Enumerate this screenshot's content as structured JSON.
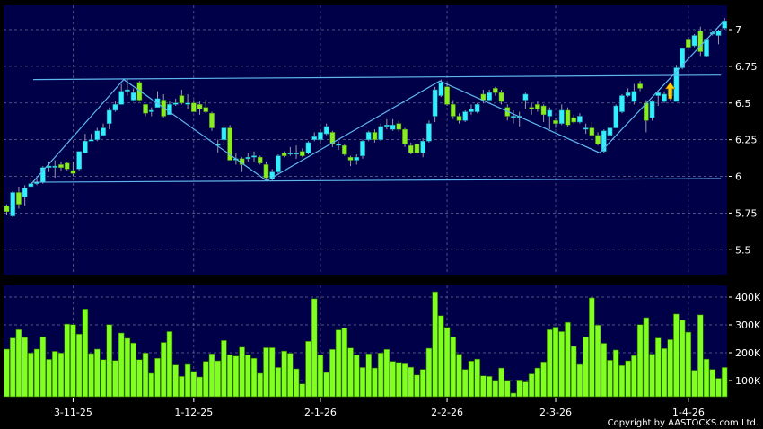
{
  "copyright": "Copyright by AASTOCKS.com Ltd.",
  "colors": {
    "background": "#000000",
    "panel": "#000048",
    "grid": "#6a6a9a",
    "up": "#33eeff",
    "down": "#88ee22",
    "volume": "#80ff20",
    "trendline": "#5fb6ee",
    "arrow": "#ffcc00"
  },
  "chart_data": [
    {
      "type": "candlestick",
      "title": "",
      "grid": true,
      "ylim": [
        5.35,
        7.16
      ],
      "y_ticks": [
        "7",
        "6.75",
        "6.5",
        "6.25",
        "6",
        "5.75",
        "5.5"
      ],
      "y_tick_values": [
        7,
        6.75,
        6.5,
        6.25,
        6,
        5.75,
        5.5
      ],
      "x_ticks": [
        {
          "label": "3-11-25",
          "bar_index": 11
        },
        {
          "label": "1-12-25",
          "bar_index": 31
        },
        {
          "label": "2-1-26",
          "bar_index": 52
        },
        {
          "label": "2-2-26",
          "bar_index": 73
        },
        {
          "label": "2-3-26",
          "bar_index": 91
        },
        {
          "label": "1-4-26",
          "bar_index": 113
        }
      ],
      "ohlc_fields": [
        "open",
        "high",
        "low",
        "close"
      ],
      "ohlc": [
        [
          5.8,
          5.81,
          5.74,
          5.76
        ],
        [
          5.73,
          5.9,
          5.72,
          5.89
        ],
        [
          5.89,
          5.93,
          5.78,
          5.81
        ],
        [
          5.86,
          5.94,
          5.8,
          5.92
        ],
        [
          5.93,
          5.99,
          5.93,
          5.95
        ],
        [
          5.95,
          5.98,
          5.94,
          5.96
        ],
        [
          5.96,
          6.07,
          5.95,
          6.06
        ],
        [
          6.06,
          6.1,
          6.03,
          6.07
        ],
        [
          6.07,
          6.11,
          5.99,
          6.07
        ],
        [
          6.08,
          6.1,
          6.04,
          6.06
        ],
        [
          6.09,
          6.1,
          6.04,
          6.05
        ],
        [
          6.04,
          6.1,
          6.0,
          6.02
        ],
        [
          6.05,
          6.17,
          6.04,
          6.17
        ],
        [
          6.16,
          6.29,
          6.16,
          6.24
        ],
        [
          6.24,
          6.29,
          6.24,
          6.25
        ],
        [
          6.25,
          6.33,
          6.24,
          6.31
        ],
        [
          6.28,
          6.36,
          6.28,
          6.33
        ],
        [
          6.36,
          6.47,
          6.32,
          6.45
        ],
        [
          6.45,
          6.51,
          6.44,
          6.49
        ],
        [
          6.49,
          6.63,
          6.49,
          6.58
        ],
        [
          6.58,
          6.66,
          6.55,
          6.59
        ],
        [
          6.52,
          6.6,
          6.51,
          6.57
        ],
        [
          6.64,
          6.65,
          6.51,
          6.52
        ],
        [
          6.49,
          6.49,
          6.41,
          6.43
        ],
        [
          6.44,
          6.47,
          6.41,
          6.45
        ],
        [
          6.47,
          6.58,
          6.47,
          6.53
        ],
        [
          6.52,
          6.56,
          6.4,
          6.41
        ],
        [
          6.42,
          6.51,
          6.42,
          6.49
        ],
        [
          6.49,
          6.53,
          6.48,
          6.5
        ],
        [
          6.55,
          6.59,
          6.49,
          6.5
        ],
        [
          6.5,
          6.56,
          6.46,
          6.5
        ],
        [
          6.5,
          6.52,
          6.44,
          6.44
        ],
        [
          6.49,
          6.51,
          6.42,
          6.46
        ],
        [
          6.47,
          6.52,
          6.43,
          6.44
        ],
        [
          6.43,
          6.44,
          6.31,
          6.33
        ],
        [
          6.22,
          6.25,
          6.16,
          6.22
        ],
        [
          6.25,
          6.35,
          6.21,
          6.33
        ],
        [
          6.33,
          6.35,
          6.11,
          6.11
        ],
        [
          6.12,
          6.16,
          6.08,
          6.12
        ],
        [
          6.12,
          6.13,
          6.03,
          6.08
        ],
        [
          6.12,
          6.16,
          6.1,
          6.13
        ],
        [
          6.14,
          6.17,
          6.1,
          6.14
        ],
        [
          6.13,
          6.14,
          6.08,
          6.09
        ],
        [
          6.08,
          6.1,
          5.97,
          5.99
        ],
        [
          5.98,
          6.05,
          5.97,
          6.03
        ],
        [
          6.03,
          6.15,
          6.02,
          6.14
        ],
        [
          6.16,
          6.17,
          6.13,
          6.14
        ],
        [
          6.16,
          6.2,
          6.14,
          6.16
        ],
        [
          6.16,
          6.21,
          6.12,
          6.16
        ],
        [
          6.17,
          6.19,
          6.13,
          6.14
        ],
        [
          6.16,
          6.24,
          6.15,
          6.23
        ],
        [
          6.25,
          6.3,
          6.24,
          6.27
        ],
        [
          6.25,
          6.32,
          6.22,
          6.3
        ],
        [
          6.29,
          6.36,
          6.28,
          6.34
        ],
        [
          6.3,
          6.31,
          6.2,
          6.22
        ],
        [
          6.22,
          6.24,
          6.18,
          6.22
        ],
        [
          6.21,
          6.22,
          6.14,
          6.15
        ],
        [
          6.13,
          6.14,
          6.07,
          6.11
        ],
        [
          6.11,
          6.15,
          6.08,
          6.13
        ],
        [
          6.14,
          6.25,
          6.12,
          6.24
        ],
        [
          6.25,
          6.31,
          6.24,
          6.3
        ],
        [
          6.3,
          6.32,
          6.23,
          6.25
        ],
        [
          6.25,
          6.36,
          6.24,
          6.34
        ],
        [
          6.35,
          6.39,
          6.32,
          6.35
        ],
        [
          6.32,
          6.39,
          6.31,
          6.35
        ],
        [
          6.36,
          6.38,
          6.3,
          6.32
        ],
        [
          6.32,
          6.33,
          6.2,
          6.22
        ],
        [
          6.21,
          6.23,
          6.15,
          6.16
        ],
        [
          6.22,
          6.23,
          6.15,
          6.16
        ],
        [
          6.16,
          6.26,
          6.13,
          6.24
        ],
        [
          6.24,
          6.38,
          6.23,
          6.36
        ],
        [
          6.41,
          6.61,
          6.37,
          6.59
        ],
        [
          6.55,
          6.66,
          6.54,
          6.64
        ],
        [
          6.61,
          6.64,
          6.48,
          6.49
        ],
        [
          6.49,
          6.52,
          6.39,
          6.41
        ],
        [
          6.41,
          6.43,
          6.36,
          6.38
        ],
        [
          6.38,
          6.45,
          6.37,
          6.44
        ],
        [
          6.44,
          6.49,
          6.42,
          6.46
        ],
        [
          6.44,
          6.5,
          6.43,
          6.49
        ],
        [
          6.56,
          6.59,
          6.5,
          6.52
        ],
        [
          6.52,
          6.59,
          6.51,
          6.57
        ],
        [
          6.6,
          6.61,
          6.55,
          6.57
        ],
        [
          6.57,
          6.59,
          6.49,
          6.51
        ],
        [
          6.47,
          6.49,
          6.38,
          6.41
        ],
        [
          6.41,
          6.45,
          6.36,
          6.41
        ],
        [
          6.41,
          6.44,
          6.34,
          6.41
        ],
        [
          6.52,
          6.57,
          6.46,
          6.56
        ],
        [
          6.47,
          6.5,
          6.42,
          6.46
        ],
        [
          6.49,
          6.51,
          6.44,
          6.46
        ],
        [
          6.48,
          6.49,
          6.37,
          6.42
        ],
        [
          6.41,
          6.47,
          6.32,
          6.45
        ],
        [
          6.38,
          6.4,
          6.33,
          6.36
        ],
        [
          6.36,
          6.49,
          6.35,
          6.45
        ],
        [
          6.45,
          6.47,
          6.34,
          6.35
        ],
        [
          6.4,
          6.42,
          6.36,
          6.37
        ],
        [
          6.37,
          6.43,
          6.36,
          6.41
        ],
        [
          6.33,
          6.36,
          6.29,
          6.33
        ],
        [
          6.33,
          6.37,
          6.27,
          6.28
        ],
        [
          6.28,
          6.3,
          6.21,
          6.22
        ],
        [
          6.17,
          6.32,
          6.16,
          6.31
        ],
        [
          6.28,
          6.34,
          6.27,
          6.33
        ],
        [
          6.33,
          6.49,
          6.33,
          6.48
        ],
        [
          6.44,
          6.56,
          6.43,
          6.55
        ],
        [
          6.55,
          6.6,
          6.54,
          6.57
        ],
        [
          6.51,
          6.63,
          6.49,
          6.58
        ],
        [
          6.63,
          6.65,
          6.58,
          6.6
        ],
        [
          6.5,
          6.52,
          6.3,
          6.38
        ],
        [
          6.4,
          6.52,
          6.38,
          6.51
        ],
        [
          6.55,
          6.58,
          6.48,
          6.57
        ],
        [
          6.51,
          6.58,
          6.5,
          6.56
        ],
        [
          6.55,
          6.62,
          6.52,
          6.6
        ],
        [
          6.51,
          6.76,
          6.51,
          6.74
        ],
        [
          6.74,
          6.87,
          6.73,
          6.87
        ],
        [
          6.93,
          6.95,
          6.87,
          6.88
        ],
        [
          6.89,
          6.97,
          6.88,
          6.96
        ],
        [
          6.99,
          7.02,
          6.82,
          6.85
        ],
        [
          6.82,
          6.94,
          6.81,
          6.93
        ],
        [
          6.97,
          6.99,
          6.96,
          6.98
        ],
        [
          6.96,
          7.0,
          6.9,
          6.99
        ],
        [
          7.01,
          7.08,
          7.0,
          7.06
        ]
      ],
      "trendlines": [
        {
          "kind": "resistance",
          "points": [
            [
              4.4,
              6.66
            ],
            [
              118.4,
              6.69
            ]
          ]
        },
        {
          "kind": "support",
          "points": [
            [
              4.4,
              5.96
            ],
            [
              118.4,
              5.985
            ]
          ]
        },
        {
          "kind": "zigzag",
          "points": [
            [
              4.1,
              5.95
            ],
            [
              19.4,
              6.66
            ],
            [
              43.1,
              5.97
            ],
            [
              71.8,
              6.65
            ],
            [
              98.3,
              6.16
            ],
            [
              118.7,
              7.05
            ]
          ]
        }
      ],
      "annotations": [
        {
          "type": "up-arrow",
          "bar_index": 110,
          "price_range": [
            6.53,
            6.64
          ]
        }
      ]
    },
    {
      "type": "bar",
      "title": "",
      "grid": true,
      "unit": "K",
      "ylim": [
        42,
        442
      ],
      "y_ticks": [
        "400K",
        "300K",
        "200K",
        "100K"
      ],
      "y_tick_values": [
        400,
        300,
        200,
        100
      ],
      "x_ticks": [
        "3-11-25",
        "1-12-25",
        "2-1-26",
        "2-2-26",
        "2-3-26",
        "1-4-26"
      ],
      "values": [
        213,
        253,
        283,
        255,
        199,
        213,
        257,
        176,
        205,
        199,
        303,
        301,
        267,
        357,
        197,
        213,
        175,
        301,
        172,
        271,
        252,
        235,
        175,
        199,
        126,
        180,
        237,
        276,
        156,
        115,
        158,
        133,
        113,
        169,
        196,
        171,
        244,
        193,
        188,
        220,
        192,
        180,
        126,
        218,
        218,
        147,
        206,
        198,
        142,
        88,
        241,
        394,
        192,
        129,
        212,
        282,
        288,
        217,
        192,
        147,
        196,
        145,
        199,
        212,
        169,
        165,
        160,
        148,
        120,
        140,
        216,
        419,
        333,
        291,
        257,
        195,
        140,
        170,
        177,
        117,
        115,
        101,
        145,
        101,
        55,
        102,
        95,
        124,
        145,
        167,
        283,
        292,
        276,
        309,
        223,
        158,
        257,
        397,
        299,
        234,
        173,
        210,
        154,
        171,
        190,
        301,
        326,
        195,
        253,
        215,
        247,
        339,
        317,
        274,
        137,
        336,
        177,
        140,
        108,
        147
      ]
    }
  ]
}
